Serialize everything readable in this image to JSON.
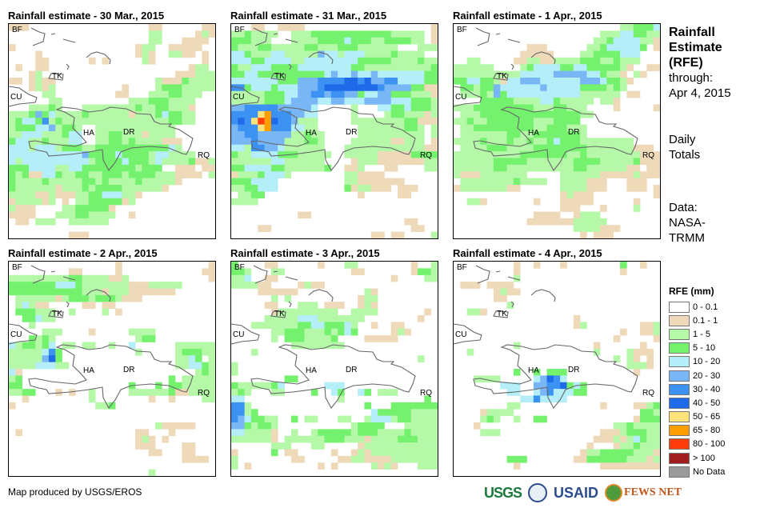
{
  "side": {
    "title_lines": [
      "Rainfall",
      "Estimate",
      "(RFE)"
    ],
    "through_label": "through:",
    "through_date": "Apr 4, 2015",
    "period_lines": [
      "Daily",
      "Totals"
    ],
    "data_lines": [
      "Data:",
      "NASA-",
      "TRMM"
    ]
  },
  "legend": {
    "title": "RFE (mm)",
    "items": [
      {
        "label": "0 - 0.1",
        "color": "#ffffff"
      },
      {
        "label": "0.1 - 1",
        "color": "#eed9b9"
      },
      {
        "label": "1 - 5",
        "color": "#b4f8a8"
      },
      {
        "label": "5 - 10",
        "color": "#74f26e"
      },
      {
        "label": "10 - 20",
        "color": "#b4eef8"
      },
      {
        "label": "20 - 30",
        "color": "#78b6f6"
      },
      {
        "label": "30 - 40",
        "color": "#3c92f2"
      },
      {
        "label": "40 - 50",
        "color": "#1e6ae8"
      },
      {
        "label": "50 - 65",
        "color": "#fee27a"
      },
      {
        "label": "65 - 80",
        "color": "#fe9e00"
      },
      {
        "label": "80 - 100",
        "color": "#fe3c0c"
      },
      {
        "label": "> 100",
        "color": "#a01e1e"
      },
      {
        "label": "No Data",
        "color": "#9a9a9a"
      }
    ]
  },
  "place_labels": [
    "BF",
    "TK",
    "CU",
    "HA",
    "DR",
    "RQ"
  ],
  "footer": "Map produced by USGS/EROS",
  "logos": {
    "usgs": "USGS",
    "usaid": "USAID",
    "fews": "FEWS NET"
  },
  "maps": [
    {
      "title": "Rainfall estimate - 30 Mar., 2015",
      "grid": [
        "1110000000000000000001100000011",
        "0000000000000000000002200000121",
        "0000000000000000000002200011110",
        "1000000000000000000122001111100",
        "0000100000000000000121002211010",
        "0000110000001010000021000000010",
        "0100110000000000000000000001220",
        "0001200000000000000000000111222",
        "1101211000000000000000211132222",
        "0001212000000000010000233322222",
        "0000022000000000110002223322200",
        "0000002200000000002223332222000",
        "0002223200022222222322332221000",
        "2223534222232222221222343322000",
        "2344362322222222222222223322000",
        "2333445233200222222222222000000",
        "2244422234400223322212222000000",
        "3442232224400223323222211100000",
        "4442444233322333333333334200000",
        "4444444444453333433332442222000",
        "4244444444442333343332422223112",
        "3334444224433333333233300111011",
        "3231144322332233323333222111102",
        "3222232222233232222322222100000",
        "3222222122232333322222210000000",
        "2222112111223344422100000000000",
        "1222212010223333312000000000000",
        "2111000022333331000000000000000",
        "1111000222332222001000000000000",
        "0110222002222220000000000000000",
        "0000000000000000000000000000000",
        "0000000001110000000000000000000"
      ]
    },
    {
      "title": "Rainfall estimate - 31 Mar., 2015",
      "grid": [
        "0001100111100000000000000000001",
        "2232222002223333333333332222201",
        "3332220002222333343332233332201",
        "3222332222233222333222222000222",
        "4432224422222544244422223222200",
        "4443344442244444444333332222322",
        "3224443333444444443322222222223",
        "3344333333333345445445444444433",
        "4444444333555666677675566444433",
        "6634443444555677777777655553311",
        "2222233344556656655344553332221",
        "2222233345555445544455554443332",
        "5566666555554000002000443343332",
        "6666896665544000002000023322212",
        "6768a97665222000002222222233111",
        "5666896664422000000222222233202",
        "5566555552232200000222222222202",
        "5556555522233200002222221122201",
        "4426655422222200022222222222211",
        "3224444333222220022222111113333",
        "2222224422222200001222111111122",
        "3344443322222230011200011000022",
        "1222344420000000022111100000000",
        "3334444000000000022111111100000",
        "2233444000000000031221110111000",
        "0223300000000000000100000110000",
        "2222000000000000000000000000000",
        "0000000000000000000000000000000",
        "0000000000110000000000000000000",
        "0000000000000000000000000011000",
        "0000110000000000000000000001100",
        "0000000000000000000001101100002"
      ]
    },
    {
      "title": "Rainfall estimate - 1 Apr., 2015",
      "grid": [
        "0000000000000000000000000223334",
        "0000000000000000000000222443322",
        "0000000000000000000002234444221",
        "0000000000011100000022344444301",
        "0000000000111110000223333444000",
        "0022000001122112222333223222000",
        "2222220000234444334433333210011",
        "2222222222444445555544322102100",
        "3344332144555444444555433210000",
        "0332335444444544444333323200000",
        "0222325344444444444222222011000",
        "0000333332222443222220221000000",
        "2223333333332223322200001000001",
        "0222333333333333333220000000000",
        "2232233333332223333000000000000",
        "0223333333332233322200000000000",
        "0222222233223333333200000000000",
        "2222322232232234333222222220000",
        "0222233322223333333322222221110",
        "2222222222333333322322222222111",
        "2222223333322222223333222223111",
        "2222223322222222223322222211011",
        "2111222222200000222222111112111",
        "0222222223222200222211100011100",
        "1222222211000000222211100011101",
        "0000000000000000121110000000001",
        "0022100000001000111110000001000",
        "0000000000000000111000100002000",
        "0000000000001111001222000000000",
        "0000000000011111112222200000000",
        "0000000000000000002222111000000",
        "0000000000000000000101110000000"
      ]
    },
    {
      "title": "Rainfall estimate - 2 Apr., 2015",
      "grid": [
        "0000000000000000100000000000001",
        "0000000001100000100000000000011",
        "2222222223322221120000000000001",
        "3333333444322222221112222200000",
        "3333333333322212221111111000000",
        "0222222123332333211100000000000",
        "0242110000011011000000000000000",
        "0333222002000020100000000000000",
        "0033422000000000000000000000000",
        "0002000000000000000000000000000",
        "0000022200001000002222000000000",
        "0003232000000000000233000000000",
        "4233234022022002004000000222222",
        "2222246300000000000200000233322",
        "2222257300000000000000000224302",
        "2222444220000000000000000224432",
        "4100000000000000000000000000232",
        "2300000000000000000000003022222",
        "3300000000000000003000303322222",
        "2233000101002000002222223112222",
        "0010000000002000000001001000022",
        "1000000000000223000000000000000",
        "0000000000000000000000000000000",
        "0000000000000000000000000000000",
        "0000000000000000000000211111000",
        "0100000000000000000110001000000",
        "0000000000000000000121010000000",
        "0000000000000000000111000011000",
        "0000000000000000000001100011000",
        "0000000000000000000000000011110",
        "0000000000000000000000000000000",
        "0000000000000000000002000000000"
      ]
    },
    {
      "title": "Rainfall estimate - 3 Apr., 2015",
      "grid": [
        "3000011000000100022000000001002",
        "3320002200000000001100000001332",
        "2240011000000000000000001000022",
        "2222110000121100000000000000000",
        "0000111111000000000021000000000",
        "0000002020000000000122000000000",
        "0000011000222011100121000000000",
        "0000001222222222002222000000010",
        "0000022222444222222200000000100",
        "0002222222334433342001001100000",
        "0000002233322232343000001210000",
        "0000002033322223000011111000000",
        "0000000002222222200000000000000",
        "0002000000000000000000000000000",
        "0000000000000000000000000000200",
        "2000000000000000000000000000000",
        "2000000000000000000000000000000",
        "0000000033000000000000000000000",
        "3222223400000044400000000000000",
        "2320002200003004300430222000000",
        "4400000000000000200000000000030",
        "6620000000000000000030003333333",
        "6623000000000000000004333332222",
        "6543322003022000220024442332222",
        "5532332000000000002333300022222",
        "4422221002002333332333222232222",
        "2222221022222233322212222333222",
        "0000002220002200000122222222222",
        "1000003011000001001212222222222",
        "2000000001100000112211112222222",
        "2010000000000101000002121000222",
        "0000000000000000000000000000000"
      ]
    },
    {
      "title": "Rainfall estimate - 4 Apr., 2015",
      "grid": [
        "0000000001001000100000000300100",
        "0000000001000000000000000100000",
        "0000000002000000000000000000000",
        "0111011110000000000000000000000",
        "0000001211000000000000000000000",
        "0000001100000000000000000000000",
        "0000000020000000000000000000000",
        "0022100000000000000000000000000",
        "0000000000000000001000000000000",
        "0000000000000000001200000000112",
        "0000000000000000000000000100112",
        "0000000000000000000000001000001",
        "0000000002000000000001000000100",
        "0020000000000000000002000021110",
        "0000000000000000000000002021010",
        "0000000000000000000000000022210",
        "0000000003003033300000000001000",
        "0002222000004576400000000000000",
        "0000000444005566734300000000000",
        "0000000044004564443300000000000",
        "0000000000446444400000000000000",
        "0000000022000000000000100001123",
        "0000122220000000000000000000332",
        "0000232002003300000000000001333",
        "0001000000000000000000002232222",
        "0000222000000000000000111233322",
        "0000000000000000000001112124322",
        "0000000000000000000010001223222",
        "0000000000000000000122333332221",
        "0000000033300000001133333322212",
        "0000000001000000000000111111111",
        "0000000000000000000000000000000"
      ]
    }
  ]
}
